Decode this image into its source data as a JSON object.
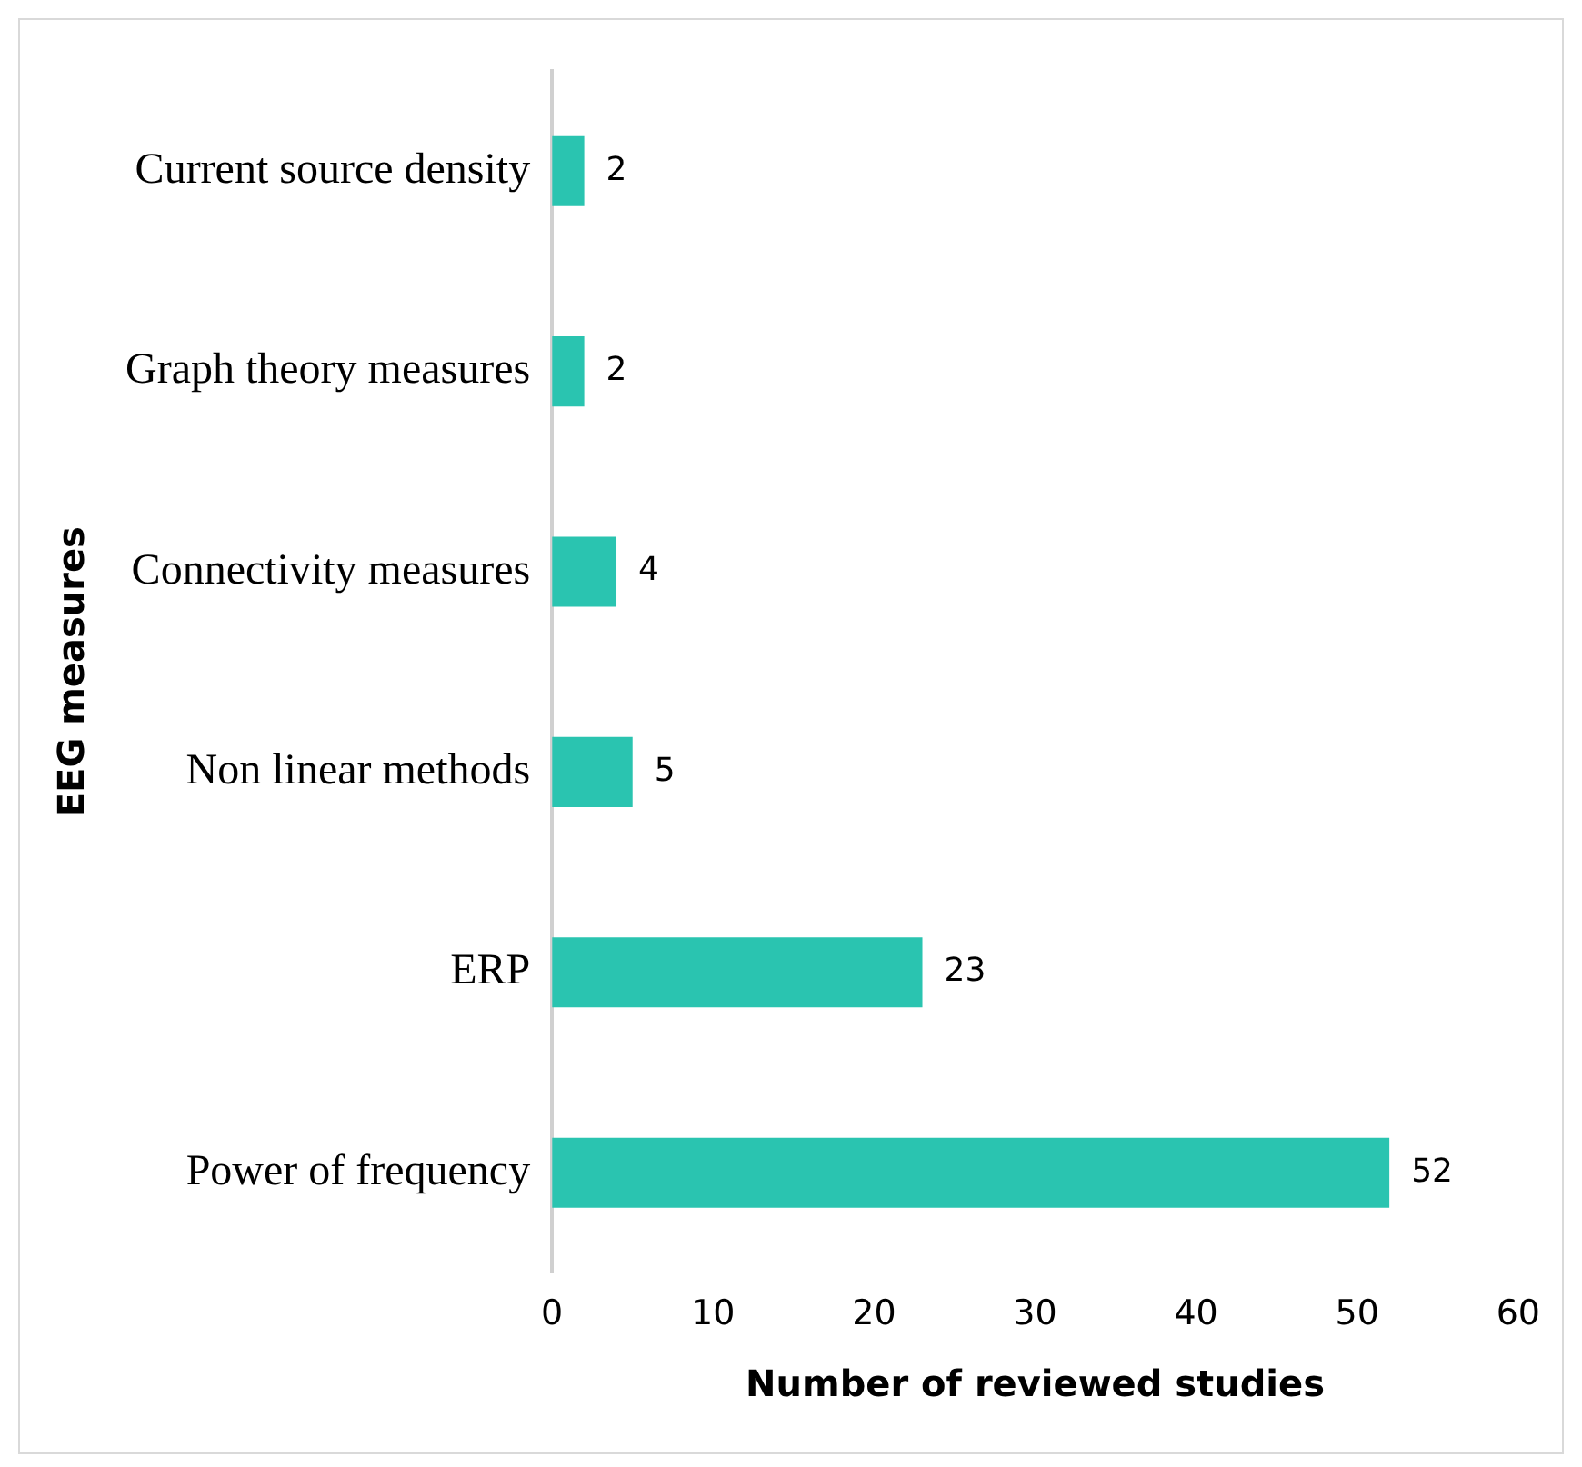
{
  "chart_data": {
    "type": "bar",
    "orientation": "horizontal",
    "categories": [
      "Current source density",
      "Graph theory measures",
      "Connectivity measures",
      "Non linear methods",
      "ERP",
      "Power of frequency"
    ],
    "values": [
      2,
      2,
      4,
      5,
      23,
      52
    ],
    "color": "#2ac4b0",
    "xlabel": "Number of reviewed studies",
    "ylabel": "EEG measures",
    "xlim": [
      0,
      60
    ],
    "xticks": [
      0,
      10,
      20,
      30,
      40,
      50,
      60
    ],
    "grid": false,
    "legend": false,
    "data_labels": true
  }
}
